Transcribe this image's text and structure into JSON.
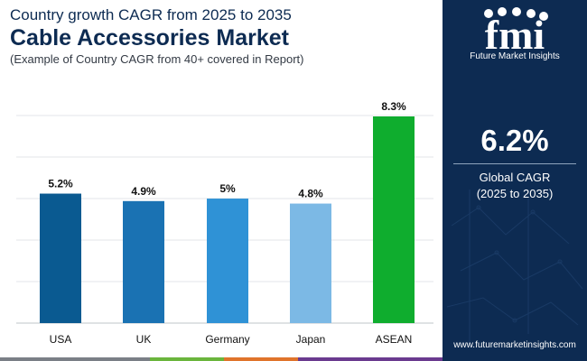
{
  "header": {
    "line1": "Country growth CAGR from 2025 to 2035",
    "line2": "Cable Accessories Market",
    "line3": "(Example of Country CAGR from 40+ covered in Report)"
  },
  "chart_data": {
    "type": "bar",
    "title": "Cable Accessories Market",
    "subtitle": "Country growth CAGR from 2025 to 2035",
    "categories": [
      "USA",
      "UK",
      "Germany",
      "Japan",
      "ASEAN"
    ],
    "values": [
      5.2,
      4.9,
      5,
      4.8,
      8.3
    ],
    "data_labels": [
      "5.2%",
      "4.9%",
      "5%",
      "4.8%",
      "8.3%"
    ],
    "colors": [
      "#0a5a91",
      "#1a72b3",
      "#2f92d6",
      "#7cb9e5",
      "#0fad2e"
    ],
    "xlabel": "",
    "ylabel": "",
    "ylim": [
      0,
      8.3
    ],
    "grid": true,
    "legend": "none"
  },
  "sidebar": {
    "logo_text": "fmi",
    "logo_caption": "Future Market Insights",
    "global_value": "6.2%",
    "global_label_1": "Global CAGR",
    "global_label_2": "(2025 to 2035)",
    "url": "www.futuremarketinsights.com",
    "accent_color": "#0d2b52"
  },
  "footer_colors": [
    "#7a7f86",
    "#6ab53c",
    "#e0742b",
    "#6a3a8f"
  ]
}
